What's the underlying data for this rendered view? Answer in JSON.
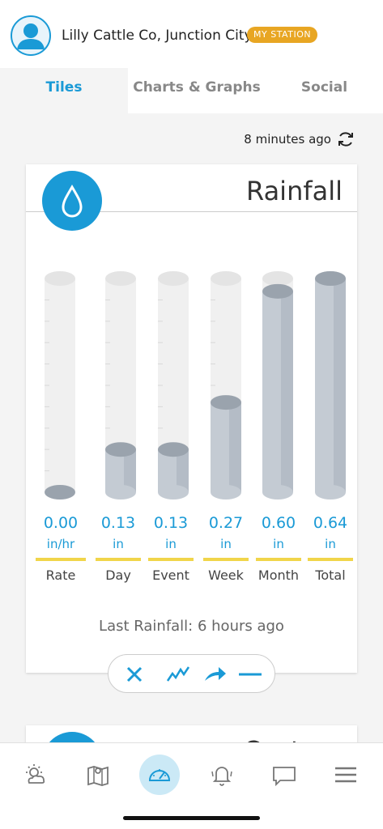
{
  "header": {
    "station_name": "Lilly Cattle Co, Junction City",
    "badge": "MY STATION"
  },
  "tabs": [
    {
      "label": "Tiles",
      "active": true
    },
    {
      "label": "Charts & Graphs",
      "active": false
    },
    {
      "label": "Social",
      "active": false
    }
  ],
  "updated": "8 minutes ago",
  "rainfall_card": {
    "title": "Rainfall",
    "gauges": [
      {
        "value": "0.00",
        "unit": "in/hr",
        "label": "Rate",
        "fill": 0.0
      },
      {
        "value": "0.13",
        "unit": "in",
        "label": "Day",
        "fill": 0.2
      },
      {
        "value": "0.13",
        "unit": "in",
        "label": "Event",
        "fill": 0.2
      },
      {
        "value": "0.27",
        "unit": "in",
        "label": "Week",
        "fill": 0.42
      },
      {
        "value": "0.60",
        "unit": "in",
        "label": "Month",
        "fill": 0.94
      },
      {
        "value": "0.64",
        "unit": "in",
        "label": "Total",
        "fill": 1.0
      }
    ],
    "last_rainfall": "Last Rainfall: 6 hours ago"
  },
  "next_card": {
    "title": "Cont"
  },
  "actions": [
    "close-icon",
    "trend-icon",
    "arrow-icon",
    "dash-icon"
  ],
  "nav": [
    "weather-icon",
    "map-icon",
    "dashboard-icon",
    "bell-icon",
    "chat-icon",
    "menu-icon"
  ],
  "colors": {
    "accent": "#1a9ad6",
    "badge": "#e8a623",
    "underline": "#f1d54a"
  }
}
